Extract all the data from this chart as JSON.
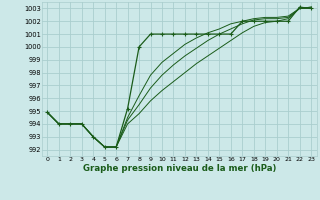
{
  "title": "Graphe pression niveau de la mer (hPa)",
  "bg_color": "#cce8e8",
  "grid_color": "#aacece",
  "line_color": "#1a5c1a",
  "xlim": [
    -0.5,
    23.5
  ],
  "ylim": [
    991.5,
    1003.5
  ],
  "yticks": [
    992,
    993,
    994,
    995,
    996,
    997,
    998,
    999,
    1000,
    1001,
    1002,
    1003
  ],
  "xticks": [
    0,
    1,
    2,
    3,
    4,
    5,
    6,
    7,
    8,
    9,
    10,
    11,
    12,
    13,
    14,
    15,
    16,
    17,
    18,
    19,
    20,
    21,
    22,
    23
  ],
  "series_main": [
    994.9,
    994.0,
    994.0,
    994.0,
    993.0,
    992.2,
    992.2,
    995.2,
    1000.0,
    1001.0,
    1001.0,
    1001.0,
    1001.0,
    1001.0,
    1001.0,
    1001.0,
    1001.0,
    1002.0,
    1002.0,
    1002.0,
    1002.0,
    1002.0,
    1003.1,
    1003.0
  ],
  "series_others": [
    [
      994.9,
      994.0,
      994.0,
      994.0,
      993.0,
      992.2,
      992.2,
      994.5,
      996.2,
      997.8,
      998.8,
      999.5,
      1000.2,
      1000.7,
      1001.1,
      1001.4,
      1001.8,
      1002.0,
      1002.2,
      1002.3,
      1002.3,
      1002.4,
      1003.0,
      1003.0
    ],
    [
      994.9,
      994.0,
      994.0,
      994.0,
      993.0,
      992.2,
      992.2,
      994.3,
      995.5,
      996.8,
      997.8,
      998.6,
      999.3,
      999.9,
      1000.5,
      1001.0,
      1001.4,
      1001.8,
      1002.1,
      1002.2,
      1002.2,
      1002.3,
      1003.0,
      1003.1
    ],
    [
      994.9,
      994.0,
      994.0,
      994.0,
      993.0,
      992.2,
      992.2,
      994.0,
      994.8,
      995.8,
      996.6,
      997.3,
      998.0,
      998.7,
      999.3,
      999.9,
      1000.5,
      1001.1,
      1001.6,
      1001.9,
      1002.0,
      1002.2,
      1003.0,
      1003.1
    ]
  ]
}
